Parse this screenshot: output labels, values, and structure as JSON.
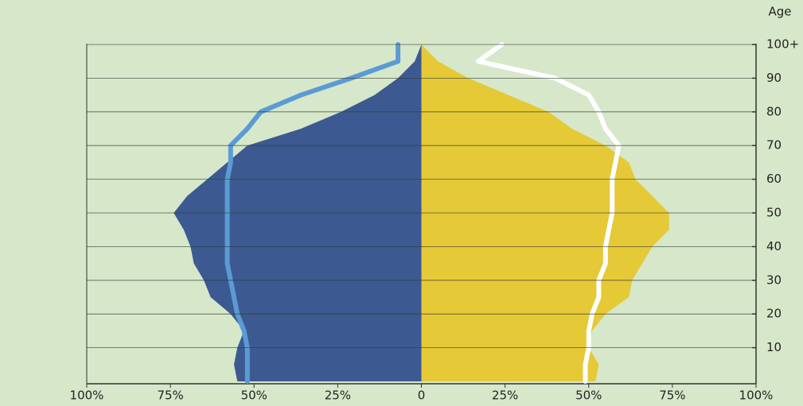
{
  "chart_data": {
    "type": "pyramid",
    "y_label": "Age",
    "y": [
      0,
      5,
      10,
      15,
      20,
      25,
      30,
      35,
      40,
      45,
      50,
      55,
      60,
      65,
      70,
      75,
      80,
      85,
      90,
      95,
      100
    ],
    "series": [
      {
        "kind": "area",
        "color": "#3c5a91",
        "values": [
          -55,
          -56,
          -55,
          -53,
          -57,
          -63,
          -65,
          -68,
          -69,
          -71,
          -74,
          -70,
          -64,
          -58,
          -52,
          -36,
          -24,
          -14,
          -7,
          -2,
          0
        ]
      },
      {
        "kind": "area",
        "color": "#e5c937",
        "values": [
          52,
          53,
          50,
          51,
          55,
          62,
          63,
          66,
          69,
          74,
          74,
          69,
          64,
          62,
          55,
          45,
          38,
          26,
          14,
          5,
          0
        ]
      },
      {
        "kind": "line",
        "color": "#5b9bd5",
        "values": [
          -52,
          -52,
          -52,
          -53,
          -55,
          -56,
          -57,
          -58,
          -58,
          -58,
          -58,
          -58,
          -58,
          -57,
          -57,
          -52,
          -48,
          -36,
          -21,
          -7,
          -7
        ]
      },
      {
        "kind": "line",
        "color": "#ffffff",
        "values": [
          49,
          49,
          50,
          50,
          51,
          53,
          53,
          55,
          55,
          56,
          57,
          57,
          57,
          58,
          59,
          55,
          53,
          50,
          40,
          17,
          24
        ]
      }
    ],
    "xlim": [
      -100,
      100
    ],
    "xticks": [
      {
        "value": -100,
        "label": "100%"
      },
      {
        "value": -75,
        "label": "75%"
      },
      {
        "value": -50,
        "label": "50%"
      },
      {
        "value": -25,
        "label": "25%"
      },
      0,
      {
        "value": 25,
        "label": "25%"
      },
      {
        "value": 50,
        "label": "50%"
      },
      {
        "value": 75,
        "label": "75%"
      },
      {
        "value": 100,
        "label": "100%"
      }
    ],
    "ylim": [
      0,
      100
    ],
    "yticks": [
      10,
      20,
      30,
      40,
      50,
      60,
      70,
      80,
      90,
      {
        "value": 100,
        "label": "100+"
      }
    ],
    "grid": true
  }
}
